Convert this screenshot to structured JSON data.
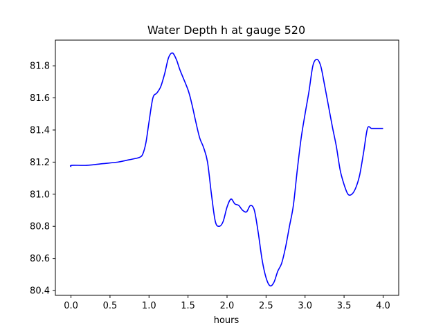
{
  "chart_data": {
    "type": "line",
    "title": "Water Depth h at gauge 520",
    "xlabel": "hours",
    "ylabel": "",
    "xlim": [
      -0.2,
      4.2
    ],
    "ylim": [
      80.37,
      81.96
    ],
    "grid": false,
    "xticks": [
      0.0,
      0.5,
      1.0,
      1.5,
      2.0,
      2.5,
      3.0,
      3.5,
      4.0
    ],
    "xtick_labels": [
      "0.0",
      "0.5",
      "1.0",
      "1.5",
      "2.0",
      "2.5",
      "3.0",
      "3.5",
      "4.0"
    ],
    "yticks": [
      80.4,
      80.6,
      80.8,
      81.0,
      81.2,
      81.4,
      81.6,
      81.8
    ],
    "ytick_labels": [
      "80.4",
      "80.6",
      "80.8",
      "81.0",
      "81.2",
      "81.4",
      "81.6",
      "81.8"
    ],
    "series": [
      {
        "color": "#0000ff",
        "x": [
          0.0,
          0.01,
          0.2,
          0.4,
          0.6,
          0.7,
          0.8,
          0.88,
          0.92,
          0.96,
          1.0,
          1.05,
          1.1,
          1.15,
          1.2,
          1.25,
          1.3,
          1.35,
          1.4,
          1.5,
          1.55,
          1.6,
          1.65,
          1.7,
          1.75,
          1.8,
          1.85,
          1.9,
          1.95,
          2.0,
          2.05,
          2.1,
          2.15,
          2.2,
          2.25,
          2.3,
          2.35,
          2.4,
          2.45,
          2.5,
          2.55,
          2.6,
          2.65,
          2.7,
          2.75,
          2.8,
          2.85,
          2.9,
          2.95,
          3.0,
          3.05,
          3.1,
          3.15,
          3.2,
          3.25,
          3.3,
          3.35,
          3.4,
          3.45,
          3.5,
          3.55,
          3.6,
          3.65,
          3.7,
          3.75,
          3.8,
          3.85,
          3.9,
          3.95,
          4.0
        ],
        "y": [
          81.17,
          81.18,
          81.18,
          81.19,
          81.2,
          81.21,
          81.22,
          81.23,
          81.25,
          81.32,
          81.45,
          81.6,
          81.63,
          81.67,
          81.75,
          81.85,
          81.88,
          81.84,
          81.77,
          81.65,
          81.56,
          81.45,
          81.35,
          81.29,
          81.2,
          81.0,
          80.83,
          80.8,
          80.83,
          80.92,
          80.97,
          80.94,
          80.93,
          80.9,
          80.89,
          80.93,
          80.9,
          80.76,
          80.59,
          80.48,
          80.43,
          80.45,
          80.52,
          80.57,
          80.67,
          80.8,
          80.93,
          81.15,
          81.35,
          81.5,
          81.64,
          81.8,
          81.84,
          81.8,
          81.68,
          81.55,
          81.42,
          81.3,
          81.15,
          81.06,
          81.0,
          81.0,
          81.04,
          81.12,
          81.26,
          81.41,
          81.41,
          81.41,
          81.41,
          81.41
        ]
      }
    ]
  }
}
